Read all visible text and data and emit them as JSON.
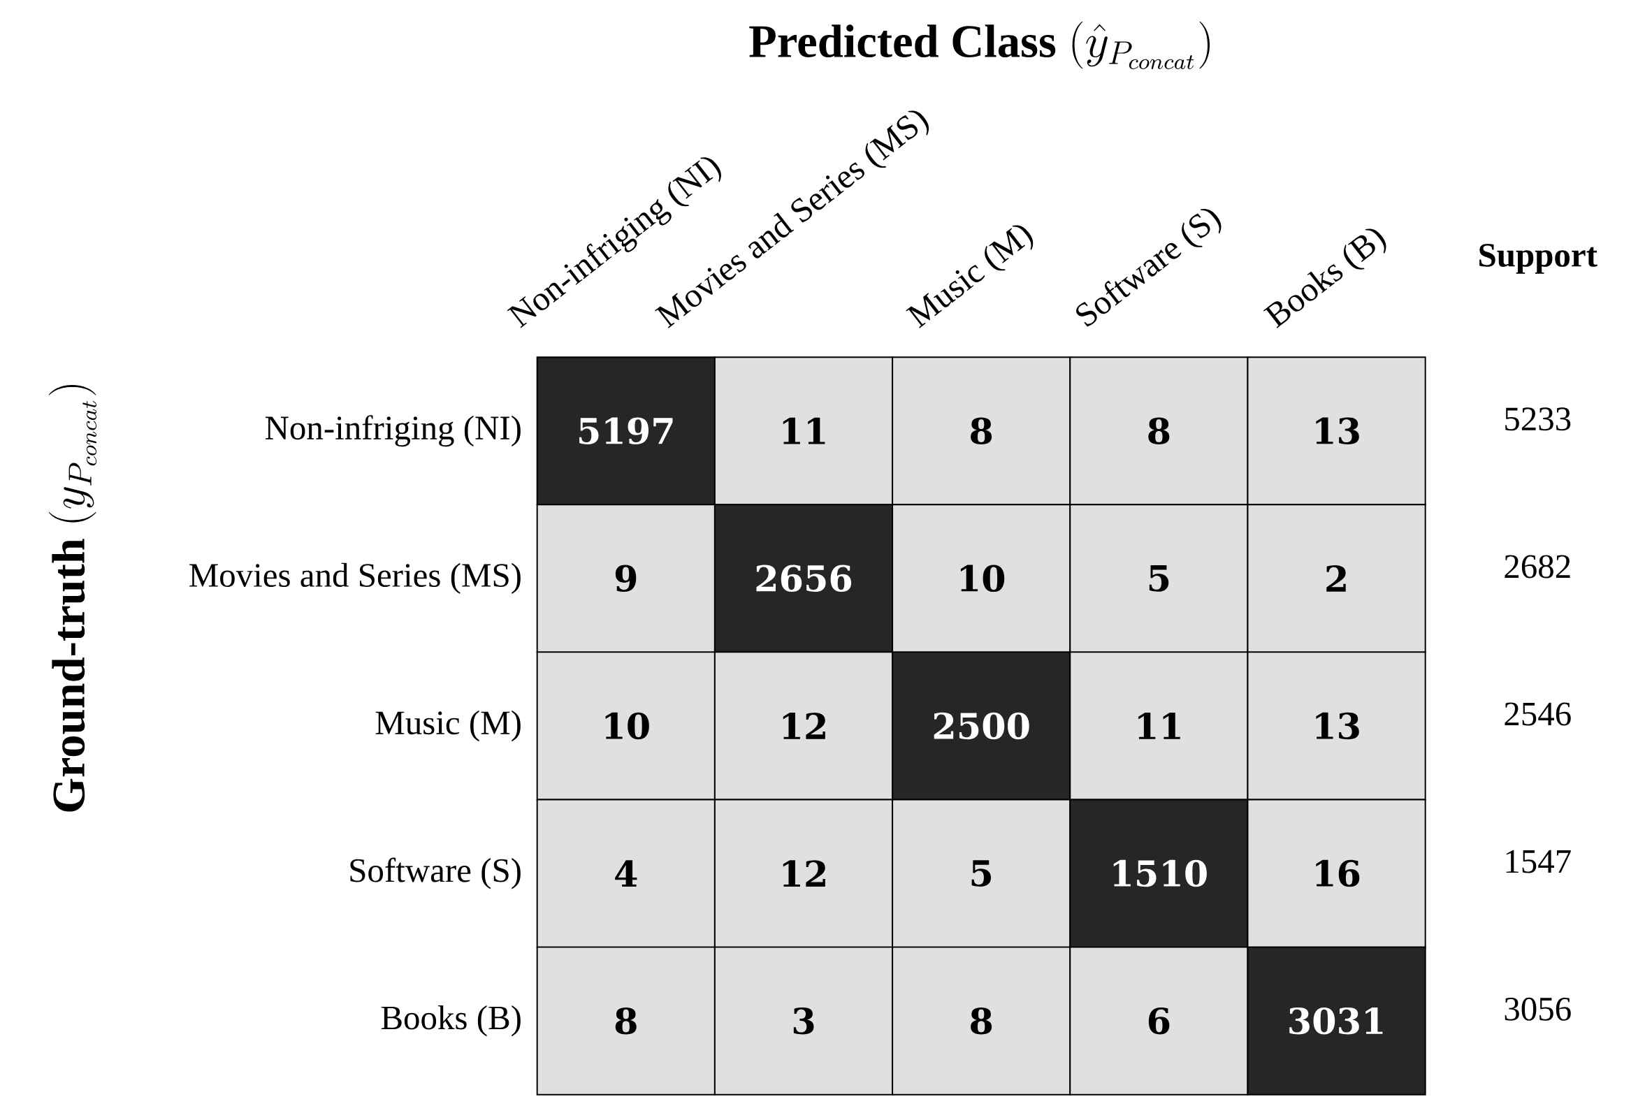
{
  "chart_data": {
    "type": "heatmap",
    "xlabel": "\\textbf{Predicted Class }(\\hat{y}_{P_{concat}})",
    "ylabel": "\\textbf{Ground-truth }(y_{P_{concat}})",
    "y2label": "Support",
    "categories": [
      "Non-infriging (NI)",
      "Movies and Series (MS)",
      "Music (M)",
      "Software (S)",
      "Books (B)"
    ],
    "y_categories": [
      "Non-infriging (NI)",
      "Movies and Series (MS)",
      "Music (M)",
      "Software (S)",
      "Books (B)"
    ],
    "y2_categories": [
      "5233",
      "2682",
      "2546",
      "1547",
      "3056"
    ],
    "cells": [
      [
        5197,
        11,
        8,
        8,
        13
      ],
      [
        9,
        2656,
        10,
        5,
        2
      ],
      [
        10,
        12,
        2500,
        11,
        13
      ],
      [
        4,
        12,
        5,
        1510,
        16
      ],
      [
        8,
        3,
        8,
        6,
        3031
      ]
    ],
    "cell_labels": [
      [
        "5197",
        "11",
        "8",
        "8",
        "13"
      ],
      [
        "9",
        "2656",
        "10",
        "5",
        "2"
      ],
      [
        "10",
        "12",
        "2500",
        "11",
        "13"
      ],
      [
        "4",
        "12",
        "5",
        "1510",
        "16"
      ],
      [
        "8",
        "3",
        "8",
        "6",
        "3031"
      ]
    ]
  }
}
